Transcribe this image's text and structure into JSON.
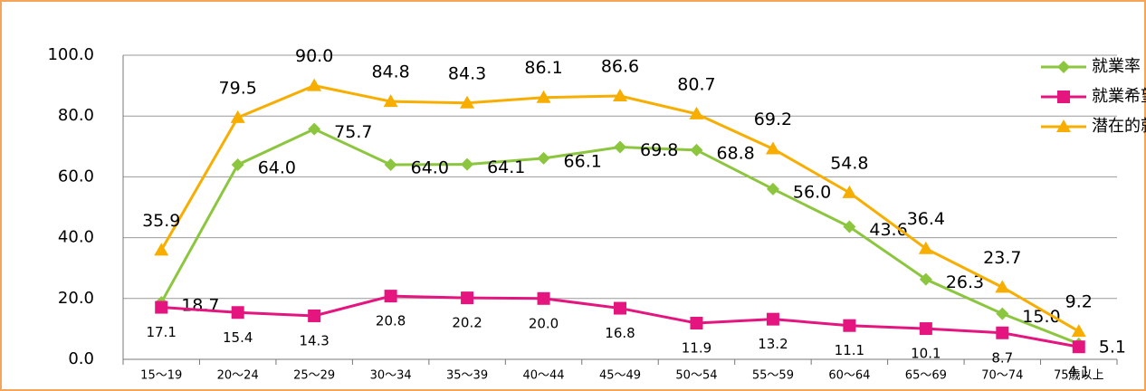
{
  "chart_data": {
    "type": "line",
    "categories": [
      "15〜19",
      "20〜24",
      "25〜29",
      "30〜34",
      "35〜39",
      "40〜44",
      "45〜49",
      "50〜54",
      "55〜59",
      "60〜64",
      "65〜69",
      "70〜74",
      "75歳以上"
    ],
    "series": [
      {
        "name": "就業率",
        "color": "#8cc63f",
        "marker": "diamond",
        "values": [
          18.7,
          64.0,
          75.7,
          64.0,
          64.1,
          66.1,
          69.8,
          68.8,
          56.0,
          43.6,
          26.3,
          15.0,
          5.1
        ],
        "value_labels": [
          "18.7",
          "64.0",
          "75.7",
          "64.0",
          "64.1",
          "66.1",
          "69.8",
          "68.8",
          "56.0",
          "43.6",
          "26.3",
          "15.0",
          "5.1"
        ]
      },
      {
        "name": "就業希望率",
        "color": "#e4157f",
        "marker": "square",
        "values": [
          17.1,
          15.4,
          14.3,
          20.8,
          20.2,
          20.0,
          16.8,
          11.9,
          13.2,
          11.1,
          10.1,
          8.7,
          4.1
        ],
        "value_labels": [
          "17.1",
          "15.4",
          "14.3",
          "20.8",
          "20.2",
          "20.0",
          "16.8",
          "11.9",
          "13.2",
          "11.1",
          "10.1",
          "8.7",
          "4.1"
        ]
      },
      {
        "name": "潜在的就業率",
        "color": "#f7ae00",
        "marker": "triangle",
        "values": [
          35.9,
          79.5,
          90.0,
          84.8,
          84.3,
          86.1,
          86.6,
          80.7,
          69.2,
          54.8,
          36.4,
          23.7,
          9.2
        ],
        "value_labels": [
          "35.9",
          "79.5",
          "90.0",
          "84.8",
          "84.3",
          "86.1",
          "86.6",
          "80.7",
          "69.2",
          "54.8",
          "36.4",
          "23.7",
          "9.2"
        ]
      }
    ],
    "ylim": [
      0,
      100
    ],
    "yticks": [
      {
        "value": 0,
        "label": "0.0"
      },
      {
        "value": 20,
        "label": "20.0"
      },
      {
        "value": 40,
        "label": "40.0"
      },
      {
        "value": 60,
        "label": "60.0"
      },
      {
        "value": 80,
        "label": "80.0"
      },
      {
        "value": 100,
        "label": "100.0"
      }
    ],
    "grid": true,
    "legend": "top-right"
  }
}
